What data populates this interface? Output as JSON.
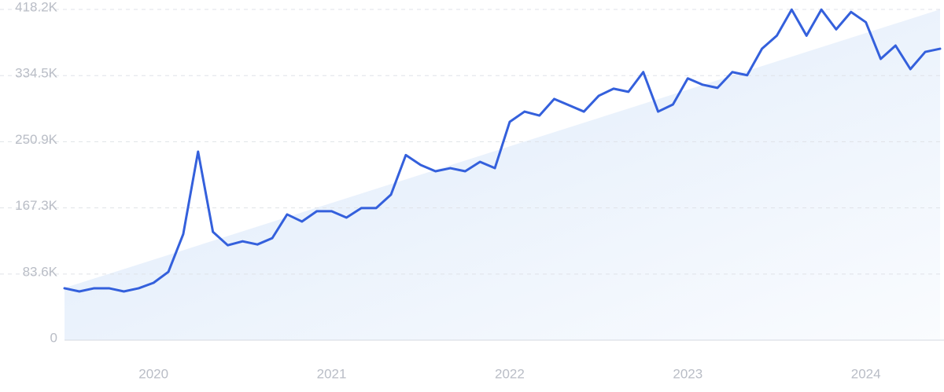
{
  "chart_data": {
    "type": "line",
    "categories": [
      null,
      null,
      null,
      null,
      null,
      null,
      "2020",
      null,
      null,
      null,
      null,
      null,
      null,
      null,
      null,
      null,
      null,
      null,
      "2021",
      null,
      null,
      null,
      null,
      null,
      null,
      null,
      null,
      null,
      null,
      null,
      "2022",
      null,
      null,
      null,
      null,
      null,
      null,
      null,
      null,
      null,
      null,
      null,
      "2023",
      null,
      null,
      null,
      null,
      null,
      null,
      null,
      null,
      null,
      null,
      null,
      "2024",
      null,
      null,
      null,
      null,
      null
    ],
    "series": [
      {
        "color": "#3460dc",
        "values": [
          65600,
          61600,
          65600,
          65600,
          61600,
          65600,
          72500,
          86400,
          134000,
          238400,
          137000,
          120000,
          125000,
          121000,
          129000,
          159000,
          150000,
          163000,
          163000,
          155000,
          167000,
          167000,
          184000,
          234000,
          221500,
          213600,
          217500,
          213600,
          225500,
          217500,
          276000,
          289000,
          284000,
          305000,
          297000,
          289000,
          309000,
          318000,
          314000,
          339000,
          289000,
          298000,
          331000,
          323000,
          319000,
          339000,
          335000,
          368500,
          385000,
          418000,
          385000,
          418000,
          393000,
          415000,
          402000,
          355600,
          372500,
          342700,
          364500,
          368500
        ]
      }
    ],
    "trend": {
      "values": [
        66000,
        418200
      ],
      "color": "#dce9fa"
    },
    "ylim": [
      0,
      418200
    ],
    "yticks": [
      0,
      {
        "value": 83600,
        "label": "83.6K"
      },
      {
        "value": 167300,
        "label": "167.3K"
      },
      {
        "value": 250900,
        "label": "250.9K"
      },
      {
        "value": 334500,
        "label": "334.5K"
      },
      {
        "value": 418200,
        "label": "418.2K"
      }
    ],
    "grid": true
  }
}
